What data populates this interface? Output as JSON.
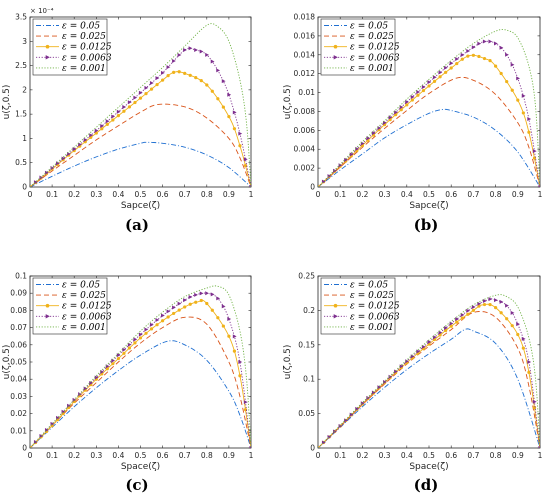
{
  "colors": {
    "eps_0_05": "#1f6fd1",
    "eps_0_025": "#d9541a",
    "eps_0_0125": "#f0b21a",
    "eps_0_0063": "#7e2f8e",
    "eps_0_001": "#6fb244"
  },
  "chart_data": [
    {
      "type": "line",
      "panel": "(a)",
      "xlabel": "Sapce(ζ)",
      "ylabel": "u(ζ,0.5)",
      "exponent_label": "× 10⁻⁴",
      "xlim": [
        0,
        1
      ],
      "ylim": [
        0,
        3.5
      ],
      "xticks": [
        0,
        0.1,
        0.2,
        0.3,
        0.4,
        0.5,
        0.6,
        0.7,
        0.8,
        0.9,
        1
      ],
      "xtick_labels": [
        "0",
        "0.1",
        "0.2",
        "0.3",
        "0.4",
        "0.5",
        "0.6",
        "0.7",
        "0.8",
        "0.9",
        "1"
      ],
      "yticks": [
        0,
        0.5,
        1,
        1.5,
        2,
        2.5,
        3,
        3.5
      ],
      "ytick_labels": [
        "0",
        "0.5",
        "1",
        "1.5",
        "2",
        "2.5",
        "3",
        "3.5"
      ],
      "legend": "top-left",
      "grid": false,
      "peaks": [
        [
          0.53,
          0.92
        ],
        [
          0.58,
          1.7
        ],
        [
          0.65,
          2.36
        ],
        [
          0.7,
          2.82
        ],
        [
          0.8,
          3.33
        ]
      ],
      "series": [
        {
          "name": "ε = 0.05",
          "style": "dashdot",
          "marker": "none",
          "x": [
            0,
            0.1,
            0.2,
            0.3,
            0.4,
            0.5,
            0.53,
            0.6,
            0.7,
            0.8,
            0.9,
            1
          ],
          "y": [
            0,
            0.22,
            0.43,
            0.62,
            0.78,
            0.9,
            0.92,
            0.9,
            0.82,
            0.66,
            0.4,
            0
          ]
        },
        {
          "name": "ε = 0.025",
          "style": "dashed",
          "marker": "none",
          "x": [
            0,
            0.1,
            0.2,
            0.3,
            0.4,
            0.5,
            0.58,
            0.7,
            0.8,
            0.9,
            0.95,
            1
          ],
          "y": [
            0,
            0.33,
            0.65,
            0.97,
            1.26,
            1.54,
            1.7,
            1.65,
            1.42,
            1.0,
            0.6,
            0
          ]
        },
        {
          "name": "ε = 0.0125",
          "style": "solid",
          "marker": "circle",
          "x": [
            0,
            0.1,
            0.2,
            0.3,
            0.4,
            0.5,
            0.6,
            0.65,
            0.7,
            0.8,
            0.9,
            0.95,
            1
          ],
          "y": [
            0,
            0.37,
            0.75,
            1.11,
            1.47,
            1.83,
            2.2,
            2.36,
            2.34,
            2.1,
            1.45,
            0.85,
            0
          ]
        },
        {
          "name": "ε = 0.0063",
          "style": "dotted",
          "marker": "triangle",
          "x": [
            0,
            0.1,
            0.2,
            0.3,
            0.4,
            0.5,
            0.6,
            0.7,
            0.75,
            0.8,
            0.85,
            0.9,
            0.95,
            1
          ],
          "y": [
            0,
            0.39,
            0.78,
            1.16,
            1.55,
            1.94,
            2.35,
            2.82,
            2.82,
            2.72,
            2.4,
            1.9,
            1.1,
            0
          ]
        },
        {
          "name": "ε = 0.001",
          "style": "dotted",
          "marker": "none",
          "x": [
            0,
            0.1,
            0.2,
            0.3,
            0.4,
            0.5,
            0.6,
            0.7,
            0.8,
            0.85,
            0.9,
            0.95,
            0.98,
            1
          ],
          "y": [
            0,
            0.41,
            0.82,
            1.23,
            1.64,
            2.05,
            2.46,
            2.9,
            3.33,
            3.3,
            3.0,
            2.2,
            1.3,
            0
          ]
        }
      ]
    },
    {
      "type": "line",
      "panel": "(b)",
      "xlabel": "Sapce(ζ)",
      "ylabel": "u(ζ,0.5)",
      "xlim": [
        0,
        1
      ],
      "ylim": [
        0,
        0.018
      ],
      "xticks": [
        0,
        0.1,
        0.2,
        0.3,
        0.4,
        0.5,
        0.6,
        0.7,
        0.8,
        0.9,
        1
      ],
      "xtick_labels": [
        "0",
        "0.1",
        "0.2",
        "0.3",
        "0.4",
        "0.5",
        "0.6",
        "0.7",
        "0.8",
        "0.9",
        "1"
      ],
      "yticks": [
        0,
        0.002,
        0.004,
        0.006,
        0.008,
        0.01,
        0.012,
        0.014,
        0.016,
        0.018
      ],
      "ytick_labels": [
        "0",
        "0.002",
        "0.004",
        "0.006",
        "0.008",
        "0.01",
        "0.012",
        "0.014",
        "0.016",
        "0.018"
      ],
      "legend": "top-left",
      "grid": false,
      "peaks": [
        [
          0.56,
          0.0082
        ],
        [
          0.62,
          0.0115
        ],
        [
          0.68,
          0.0139
        ],
        [
          0.75,
          0.0154
        ],
        [
          0.82,
          0.0166
        ]
      ],
      "series": [
        {
          "name": "ε = 0.05",
          "style": "dashdot",
          "marker": "none",
          "x": [
            0,
            0.1,
            0.2,
            0.3,
            0.4,
            0.5,
            0.56,
            0.6,
            0.7,
            0.8,
            0.9,
            1
          ],
          "y": [
            0,
            0.0018,
            0.0035,
            0.0052,
            0.0066,
            0.0078,
            0.0082,
            0.0081,
            0.0074,
            0.006,
            0.0037,
            0
          ]
        },
        {
          "name": "ε = 0.025",
          "style": "dashed",
          "marker": "none",
          "x": [
            0,
            0.1,
            0.2,
            0.3,
            0.4,
            0.5,
            0.62,
            0.7,
            0.8,
            0.9,
            0.95,
            1
          ],
          "y": [
            0,
            0.0021,
            0.0042,
            0.0062,
            0.0081,
            0.0099,
            0.0115,
            0.0113,
            0.0098,
            0.0068,
            0.0042,
            0
          ]
        },
        {
          "name": "ε = 0.0125",
          "style": "solid",
          "marker": "circle",
          "x": [
            0,
            0.1,
            0.2,
            0.3,
            0.4,
            0.5,
            0.6,
            0.68,
            0.75,
            0.8,
            0.9,
            0.95,
            1
          ],
          "y": [
            0,
            0.0022,
            0.0044,
            0.0066,
            0.0087,
            0.0107,
            0.0126,
            0.0139,
            0.0136,
            0.0128,
            0.0092,
            0.0058,
            0
          ]
        },
        {
          "name": "ε = 0.0063",
          "style": "dotted",
          "marker": "triangle",
          "x": [
            0,
            0.1,
            0.2,
            0.3,
            0.4,
            0.5,
            0.6,
            0.7,
            0.75,
            0.8,
            0.85,
            0.9,
            0.95,
            1
          ],
          "y": [
            0,
            0.0023,
            0.0046,
            0.0068,
            0.009,
            0.0111,
            0.0131,
            0.0148,
            0.0154,
            0.0152,
            0.014,
            0.0115,
            0.0072,
            0
          ]
        },
        {
          "name": "ε = 0.001",
          "style": "dotted",
          "marker": "none",
          "x": [
            0,
            0.1,
            0.2,
            0.3,
            0.4,
            0.5,
            0.6,
            0.7,
            0.8,
            0.85,
            0.9,
            0.95,
            0.98,
            1
          ],
          "y": [
            0,
            0.0024,
            0.0048,
            0.007,
            0.0093,
            0.0114,
            0.0134,
            0.0152,
            0.0165,
            0.0166,
            0.0158,
            0.0128,
            0.0085,
            0
          ]
        }
      ]
    },
    {
      "type": "line",
      "panel": "(c)",
      "xlabel": "Space(ζ)",
      "ylabel": "u(ζ,0.5)",
      "xlim": [
        0,
        1
      ],
      "ylim": [
        0,
        0.1
      ],
      "xticks": [
        0,
        0.1,
        0.2,
        0.3,
        0.4,
        0.5,
        0.6,
        0.7,
        0.8,
        0.9,
        1
      ],
      "xtick_labels": [
        "0",
        "0.1",
        "0.2",
        "0.3",
        "0.4",
        "0.5",
        "0.6",
        "0.7",
        "0.8",
        "0.9",
        "1"
      ],
      "yticks": [
        0,
        0.01,
        0.02,
        0.03,
        0.04,
        0.05,
        0.06,
        0.07,
        0.08,
        0.09,
        0.1
      ],
      "ytick_labels": [
        "0",
        "0.01",
        "0.02",
        "0.03",
        "0.04",
        "0.05",
        "0.06",
        "0.07",
        "0.08",
        "0.09",
        "0.1"
      ],
      "legend": "top-left",
      "grid": false,
      "peaks": [
        [
          0.62,
          0.062
        ],
        [
          0.7,
          0.076
        ],
        [
          0.76,
          0.085
        ],
        [
          0.8,
          0.09
        ],
        [
          0.85,
          0.094
        ]
      ],
      "series": [
        {
          "name": "ε = 0.05",
          "style": "dashdot",
          "marker": "none",
          "x": [
            0,
            0.1,
            0.2,
            0.3,
            0.4,
            0.5,
            0.62,
            0.7,
            0.8,
            0.9,
            0.95,
            1
          ],
          "y": [
            0,
            0.012,
            0.024,
            0.035,
            0.045,
            0.054,
            0.062,
            0.06,
            0.051,
            0.033,
            0.019,
            0
          ]
        },
        {
          "name": "ε = 0.025",
          "style": "dashed",
          "marker": "none",
          "x": [
            0,
            0.1,
            0.2,
            0.3,
            0.4,
            0.5,
            0.6,
            0.7,
            0.8,
            0.9,
            0.95,
            1
          ],
          "y": [
            0,
            0.013,
            0.026,
            0.038,
            0.05,
            0.061,
            0.07,
            0.076,
            0.072,
            0.05,
            0.03,
            0
          ]
        },
        {
          "name": "ε = 0.0125",
          "style": "solid",
          "marker": "circle",
          "x": [
            0,
            0.1,
            0.2,
            0.3,
            0.4,
            0.5,
            0.6,
            0.7,
            0.76,
            0.8,
            0.9,
            0.95,
            1
          ],
          "y": [
            0,
            0.013,
            0.027,
            0.04,
            0.052,
            0.064,
            0.074,
            0.082,
            0.085,
            0.084,
            0.065,
            0.042,
            0
          ]
        },
        {
          "name": "ε = 0.0063",
          "style": "dotted",
          "marker": "triangle",
          "x": [
            0,
            0.1,
            0.2,
            0.3,
            0.4,
            0.5,
            0.6,
            0.7,
            0.75,
            0.8,
            0.85,
            0.9,
            0.95,
            1
          ],
          "y": [
            0,
            0.014,
            0.028,
            0.041,
            0.054,
            0.066,
            0.077,
            0.086,
            0.089,
            0.09,
            0.087,
            0.075,
            0.05,
            0
          ]
        },
        {
          "name": "ε = 0.001",
          "style": "dotted",
          "marker": "none",
          "x": [
            0,
            0.1,
            0.2,
            0.3,
            0.4,
            0.5,
            0.6,
            0.7,
            0.8,
            0.85,
            0.9,
            0.95,
            0.98,
            1
          ],
          "y": [
            0,
            0.014,
            0.028,
            0.042,
            0.055,
            0.068,
            0.079,
            0.088,
            0.093,
            0.094,
            0.089,
            0.068,
            0.04,
            0
          ]
        }
      ]
    },
    {
      "type": "line",
      "panel": "(d)",
      "xlabel": "Space(ζ)",
      "ylabel": "u(ζ,0.5)",
      "xlim": [
        0,
        1
      ],
      "ylim": [
        0,
        0.25
      ],
      "xticks": [
        0,
        0.1,
        0.2,
        0.3,
        0.4,
        0.5,
        0.6,
        0.7,
        0.8,
        0.9,
        1
      ],
      "xtick_labels": [
        "0",
        "0.1",
        "0.2",
        "0.3",
        "0.4",
        "0.5",
        "0.6",
        "0.7",
        "0.8",
        "0.9",
        "1"
      ],
      "yticks": [
        0,
        0.05,
        0.1,
        0.15,
        0.2,
        0.25
      ],
      "ytick_labels": [
        "0",
        "0.05",
        "0.1",
        "0.15",
        "0.2",
        "0.25"
      ],
      "legend": "top-left",
      "grid": false,
      "peaks": [
        [
          0.66,
          0.172
        ],
        [
          0.7,
          0.197
        ],
        [
          0.74,
          0.208
        ],
        [
          0.77,
          0.216
        ],
        [
          0.8,
          0.222
        ]
      ],
      "series": [
        {
          "name": "ε = 0.05",
          "style": "dashdot",
          "marker": "none",
          "x": [
            0,
            0.1,
            0.2,
            0.3,
            0.4,
            0.5,
            0.6,
            0.66,
            0.7,
            0.8,
            0.9,
            1
          ],
          "y": [
            0,
            0.03,
            0.06,
            0.088,
            0.114,
            0.137,
            0.158,
            0.172,
            0.17,
            0.152,
            0.1,
            0
          ]
        },
        {
          "name": "ε = 0.025",
          "style": "dashed",
          "marker": "none",
          "x": [
            0,
            0.1,
            0.2,
            0.3,
            0.4,
            0.5,
            0.6,
            0.7,
            0.8,
            0.9,
            0.95,
            1
          ],
          "y": [
            0,
            0.031,
            0.063,
            0.093,
            0.122,
            0.148,
            0.172,
            0.197,
            0.19,
            0.145,
            0.09,
            0
          ]
        },
        {
          "name": "ε = 0.0125",
          "style": "solid",
          "marker": "circle",
          "x": [
            0,
            0.1,
            0.2,
            0.3,
            0.4,
            0.5,
            0.6,
            0.7,
            0.74,
            0.8,
            0.9,
            0.95,
            1
          ],
          "y": [
            0,
            0.032,
            0.064,
            0.095,
            0.124,
            0.151,
            0.177,
            0.2,
            0.208,
            0.204,
            0.165,
            0.11,
            0
          ]
        },
        {
          "name": "ε = 0.0063",
          "style": "dotted",
          "marker": "triangle",
          "x": [
            0,
            0.1,
            0.2,
            0.3,
            0.4,
            0.5,
            0.6,
            0.7,
            0.77,
            0.8,
            0.85,
            0.9,
            0.95,
            1
          ],
          "y": [
            0,
            0.032,
            0.065,
            0.096,
            0.126,
            0.154,
            0.181,
            0.205,
            0.216,
            0.215,
            0.207,
            0.18,
            0.125,
            0
          ]
        },
        {
          "name": "ε = 0.001",
          "style": "dotted",
          "marker": "none",
          "x": [
            0,
            0.1,
            0.2,
            0.3,
            0.4,
            0.5,
            0.6,
            0.7,
            0.8,
            0.85,
            0.9,
            0.95,
            0.98,
            1
          ],
          "y": [
            0,
            0.033,
            0.066,
            0.097,
            0.128,
            0.157,
            0.184,
            0.208,
            0.222,
            0.22,
            0.205,
            0.16,
            0.1,
            0
          ]
        }
      ]
    }
  ]
}
